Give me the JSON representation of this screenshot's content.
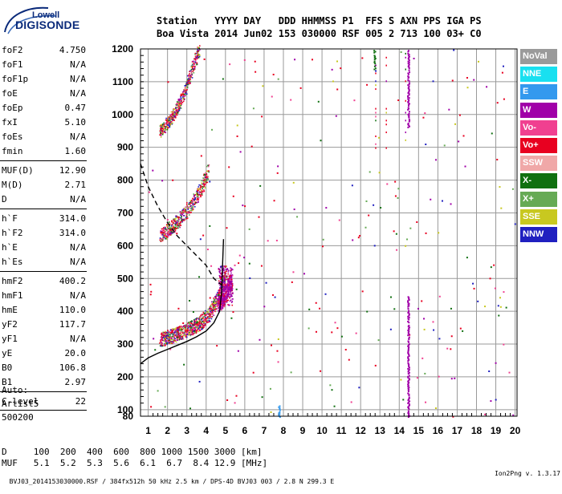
{
  "logo": {
    "line1": "Lowell",
    "line2": "DIGISONDE"
  },
  "header": {
    "line1": "Station   YYYY DAY   DDD HHMMSS P1  FFS S AXN PPS IGA PS",
    "line2": "Boa Vista 2014 Jun02 153 030000 RSF 005 2 713 100 03+ C0"
  },
  "params": [
    [
      {
        "name": "foF2",
        "value": "4.750"
      },
      {
        "name": "foF1",
        "value": "N/A"
      },
      {
        "name": "foF1p",
        "value": "N/A"
      },
      {
        "name": "foE",
        "value": "N/A"
      },
      {
        "name": "foEp",
        "value": "0.47"
      },
      {
        "name": "fxI",
        "value": "5.10"
      },
      {
        "name": "foEs",
        "value": "N/A"
      },
      {
        "name": "fmin",
        "value": "1.60"
      }
    ],
    [
      {
        "name": "MUF(D)",
        "value": "12.90"
      },
      {
        "name": "M(D)",
        "value": "2.71"
      },
      {
        "name": "D",
        "value": "N/A"
      }
    ],
    [
      {
        "name": "h`F",
        "value": "314.0"
      },
      {
        "name": "h`F2",
        "value": "314.0"
      },
      {
        "name": "h`E",
        "value": "N/A"
      },
      {
        "name": "h`Es",
        "value": "N/A"
      }
    ],
    [
      {
        "name": "hmF2",
        "value": "400.2"
      },
      {
        "name": "hmF1",
        "value": "N/A"
      },
      {
        "name": "hmE",
        "value": "110.0"
      },
      {
        "name": "yF2",
        "value": "117.7"
      },
      {
        "name": "yF1",
        "value": "N/A"
      },
      {
        "name": "yE",
        "value": "20.0"
      },
      {
        "name": "B0",
        "value": "106.8"
      },
      {
        "name": "B1",
        "value": "2.97"
      }
    ],
    [
      {
        "name": "C-level",
        "value": "22"
      }
    ]
  ],
  "auto": {
    "line1": "Auto:",
    "line2": "Artist5",
    "line3": "500200"
  },
  "muf_table": {
    "d_row": "D     100  200  400  600  800 1000 1500 3000 [km]",
    "muf_row": "MUF   5.1  5.2  5.3  5.6  6.1  6.7  8.4 12.9 [MHz]"
  },
  "footer": {
    "left": "BVJ03_2014153030000.RSF / 384fx512h 50 kHz 2.5 km / DPS-4D BVJ03 003 / 2.8 N 299.3 E",
    "right": "Ion2Png v. 1.3.17"
  },
  "legend": [
    {
      "label": "NoVal",
      "color": "#9a9a9a"
    },
    {
      "label": "NNE",
      "color": "#19e0f0"
    },
    {
      "label": "E",
      "color": "#3399ee"
    },
    {
      "label": "W",
      "color": "#a000a8"
    },
    {
      "label": "Vo-",
      "color": "#f04090"
    },
    {
      "label": "Vo+",
      "color": "#e80020"
    },
    {
      "label": "SSW",
      "color": "#f0a8a8"
    },
    {
      "label": "X-",
      "color": "#107010"
    },
    {
      "label": "X+",
      "color": "#66aa55"
    },
    {
      "label": "SSE",
      "color": "#c8c820"
    },
    {
      "label": "NNW",
      "color": "#2020c0"
    }
  ],
  "chart_data": {
    "type": "scatter",
    "title": "",
    "xlabel": "",
    "ylabel": "",
    "xlim": [
      0.6,
      20.1
    ],
    "ylim": [
      80,
      1200
    ],
    "x_ticks": [
      1,
      2,
      3,
      4,
      5,
      6,
      7,
      8,
      9,
      10,
      11,
      12,
      13,
      14,
      15,
      16,
      17,
      18,
      19,
      20
    ],
    "y_ticks": [
      80,
      100,
      200,
      300,
      400,
      500,
      600,
      700,
      800,
      900,
      1000,
      1100,
      1200
    ],
    "grid": true,
    "traces": [
      {
        "name": "O-trace F2",
        "points": [
          [
            1.6,
            315
          ],
          [
            2.0,
            322
          ],
          [
            2.5,
            332
          ],
          [
            3.0,
            345
          ],
          [
            3.5,
            360
          ],
          [
            3.8,
            372
          ],
          [
            4.1,
            390
          ],
          [
            4.3,
            410
          ],
          [
            4.5,
            430
          ],
          [
            4.7,
            455
          ],
          [
            4.8,
            480
          ],
          [
            4.9,
            500
          ],
          [
            5.0,
            530
          ]
        ]
      },
      {
        "name": "X-trace F2",
        "points": [
          [
            4.6,
            420
          ],
          [
            4.9,
            440
          ],
          [
            5.1,
            470
          ],
          [
            5.3,
            495
          ]
        ]
      },
      {
        "name": "second hop",
        "points": [
          [
            1.6,
            630
          ],
          [
            2.0,
            648
          ],
          [
            2.4,
            668
          ],
          [
            2.8,
            695
          ],
          [
            3.2,
            725
          ],
          [
            3.5,
            750
          ],
          [
            3.8,
            785
          ],
          [
            4.0,
            820
          ],
          [
            4.1,
            850
          ]
        ]
      },
      {
        "name": "third hop",
        "points": [
          [
            1.6,
            950
          ],
          [
            2.0,
            975
          ],
          [
            2.4,
            1010
          ],
          [
            2.8,
            1060
          ],
          [
            3.1,
            1110
          ],
          [
            3.4,
            1160
          ],
          [
            3.6,
            1200
          ]
        ]
      }
    ],
    "profile": [
      [
        0.6,
        240
      ],
      [
        1.0,
        258
      ],
      [
        1.5,
        272
      ],
      [
        2.0,
        284
      ],
      [
        2.5,
        296
      ],
      [
        3.0,
        308
      ],
      [
        3.5,
        322
      ],
      [
        4.0,
        340
      ],
      [
        4.4,
        365
      ],
      [
        4.7,
        400
      ],
      [
        4.8,
        460
      ],
      [
        4.85,
        540
      ],
      [
        4.9,
        620
      ]
    ],
    "profile_dashed": [
      [
        0.6,
        850
      ],
      [
        1.0,
        780
      ],
      [
        1.5,
        720
      ],
      [
        2.0,
        670
      ],
      [
        2.5,
        630
      ],
      [
        3.0,
        600
      ],
      [
        3.5,
        570
      ],
      [
        4.0,
        540
      ],
      [
        4.4,
        500
      ],
      [
        4.8,
        480
      ]
    ],
    "stripes": [
      {
        "freq": 14.45,
        "from": 960,
        "to": 1200,
        "color": "#a000a8"
      },
      {
        "freq": 14.45,
        "from": 80,
        "to": 450,
        "color": "#a000a8"
      },
      {
        "freq": 12.7,
        "from": 1140,
        "to": 1200,
        "color": "#107010"
      },
      {
        "freq": 7.75,
        "from": 80,
        "to": 115,
        "color": "#3399ee"
      }
    ]
  }
}
